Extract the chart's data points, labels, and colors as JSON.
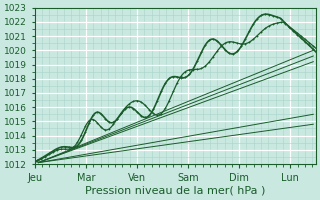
{
  "bg_color": "#c8e8e0",
  "grid_color_major": "#ffffff",
  "grid_color_minor": "#a8d4cc",
  "line_color": "#1a5c2a",
  "xlabel": "Pression niveau de la mer( hPa )",
  "ylim": [
    1012,
    1023
  ],
  "yticks": [
    1012,
    1013,
    1014,
    1015,
    1016,
    1017,
    1018,
    1019,
    1020,
    1021,
    1022,
    1023
  ],
  "xtick_labels": [
    "Jeu",
    "Mar",
    "Ven",
    "Sam",
    "Dim",
    "Lun"
  ],
  "xtick_positions": [
    0,
    1,
    2,
    3,
    4,
    5
  ],
  "xlim": [
    0,
    5.5
  ],
  "xlabel_fontsize": 8,
  "ytick_fontsize": 6.5,
  "xtick_fontsize": 7,
  "straight_lines": [
    {
      "x0": 0.07,
      "y0": 1012.1,
      "x1": 5.45,
      "y1": 1019.2
    },
    {
      "x0": 0.07,
      "y0": 1012.1,
      "x1": 5.45,
      "y1": 1019.6
    },
    {
      "x0": 0.07,
      "y0": 1012.1,
      "x1": 5.45,
      "y1": 1020.0
    },
    {
      "x0": 0.07,
      "y0": 1012.1,
      "x1": 5.45,
      "y1": 1015.5
    },
    {
      "x0": 0.07,
      "y0": 1012.1,
      "x1": 5.45,
      "y1": 1014.8
    }
  ]
}
